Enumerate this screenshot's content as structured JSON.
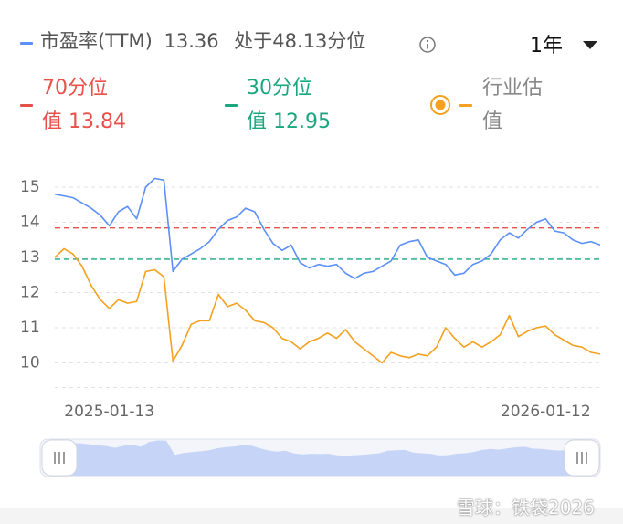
{
  "chart_data": {
    "type": "line",
    "current_value": 13.36,
    "percentile_text": "处于48.13分位",
    "period": "1年",
    "watermark": "雪球：铁袋2026",
    "categories": [
      null,
      null,
      null,
      null,
      null,
      null,
      "2025-01-13",
      null,
      null,
      null,
      null,
      null,
      null,
      null,
      null,
      null,
      null,
      null,
      null,
      null,
      null,
      null,
      null,
      null,
      null,
      null,
      null,
      null,
      null,
      null,
      null,
      null,
      null,
      null,
      null,
      null,
      null,
      null,
      null,
      null,
      null,
      null,
      null,
      null,
      null,
      null,
      null,
      null,
      null,
      null,
      null,
      null,
      null,
      null,
      "2026-01-12",
      null,
      null,
      null,
      null,
      null,
      null
    ],
    "series": [
      {
        "name": "市盈率(TTM)",
        "color": "#5b8ff9",
        "values": [
          14.8,
          14.75,
          14.7,
          14.55,
          14.4,
          14.2,
          13.9,
          14.3,
          14.45,
          14.1,
          15.0,
          15.25,
          15.2,
          12.6,
          12.95,
          13.1,
          13.25,
          13.45,
          13.8,
          14.05,
          14.15,
          14.4,
          14.3,
          13.8,
          13.4,
          13.2,
          13.35,
          12.85,
          12.7,
          12.8,
          12.75,
          12.8,
          12.55,
          12.4,
          12.55,
          12.6,
          12.75,
          12.9,
          13.35,
          13.45,
          13.5,
          13.0,
          12.9,
          12.8,
          12.5,
          12.55,
          12.8,
          12.9,
          13.1,
          13.5,
          13.7,
          13.55,
          13.8,
          14.0,
          14.1,
          13.75,
          13.7,
          13.5,
          13.4,
          13.45,
          13.36
        ]
      },
      {
        "name": "行业估值",
        "color": "#f5a01e",
        "values": [
          13.0,
          13.25,
          13.1,
          12.75,
          12.2,
          11.8,
          11.55,
          11.8,
          11.7,
          11.75,
          12.6,
          12.65,
          12.45,
          10.05,
          10.5,
          11.1,
          11.2,
          11.2,
          11.95,
          11.6,
          11.7,
          11.5,
          11.2,
          11.15,
          11.0,
          10.7,
          10.6,
          10.4,
          10.6,
          10.7,
          10.85,
          10.7,
          10.95,
          10.6,
          10.4,
          10.2,
          10.0,
          10.3,
          10.2,
          10.15,
          10.25,
          10.2,
          10.45,
          11.0,
          10.7,
          10.45,
          10.6,
          10.45,
          10.6,
          10.8,
          11.35,
          10.75,
          10.9,
          11.0,
          11.05,
          10.8,
          10.65,
          10.5,
          10.45,
          10.3,
          10.25
        ]
      }
    ],
    "reference_lines": [
      {
        "name": "70分位",
        "value": 13.84,
        "value_label": "值 13.84",
        "color": "#e8504a"
      },
      {
        "name": "30分位",
        "value": 12.95,
        "value_label": "值 12.95",
        "color": "#1aa67e"
      }
    ],
    "ylim": [
      9.3,
      15.5
    ],
    "yticks": [
      10,
      11,
      12,
      13,
      14,
      15
    ],
    "grid": true
  }
}
